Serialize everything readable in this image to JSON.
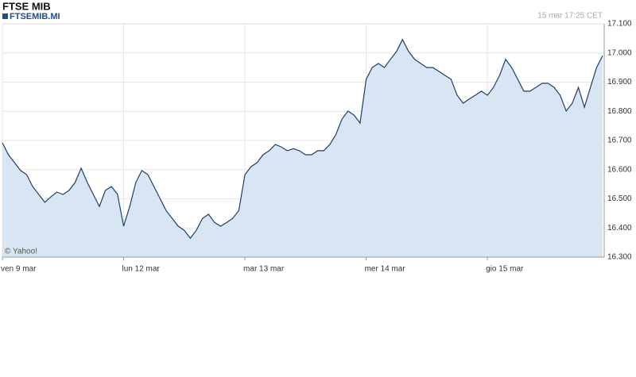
{
  "chart_data": {
    "type": "area",
    "title": "FTSE MIB",
    "subtitle": "FTSEMIB.MI",
    "timestamp": "15 mar 17:25 CET",
    "credit": "© Yahoo!",
    "categories": [
      "ven  9 mar",
      null,
      null,
      null,
      null,
      null,
      null,
      null,
      null,
      null,
      null,
      null,
      null,
      null,
      null,
      null,
      null,
      null,
      null,
      null,
      "lun 12 mar",
      null,
      null,
      null,
      null,
      null,
      null,
      null,
      null,
      null,
      null,
      null,
      null,
      null,
      null,
      null,
      null,
      null,
      null,
      null,
      "mar 13 mar",
      null,
      null,
      null,
      null,
      null,
      null,
      null,
      null,
      null,
      null,
      null,
      null,
      null,
      null,
      null,
      null,
      null,
      null,
      null,
      "mer 14 mar",
      null,
      null,
      null,
      null,
      null,
      null,
      null,
      null,
      null,
      null,
      null,
      null,
      null,
      null,
      null,
      null,
      null,
      null,
      null,
      "gio 15 mar",
      null,
      null,
      null,
      null,
      null,
      null,
      null,
      null,
      null,
      null,
      null,
      null,
      null,
      null,
      null,
      null,
      null,
      null,
      null
    ],
    "series": [
      {
        "name": "FTSEMIB.MI",
        "color": "#1b3f6e",
        "fill": "#d7e6f2",
        "values": [
          16692,
          16651,
          16624,
          16597,
          16583,
          16542,
          16515,
          16488,
          16507,
          16523,
          16515,
          16529,
          16556,
          16605,
          16556,
          16515,
          16474,
          16529,
          16542,
          16515,
          16406,
          16474,
          16556,
          16597,
          16583,
          16542,
          16501,
          16460,
          16433,
          16406,
          16392,
          16365,
          16392,
          16433,
          16447,
          16419,
          16406,
          16419,
          16433,
          16460,
          16583,
          16610,
          16624,
          16651,
          16665,
          16686,
          16678,
          16665,
          16672,
          16665,
          16651,
          16651,
          16665,
          16665,
          16686,
          16720,
          16773,
          16801,
          16787,
          16760,
          16910,
          16950,
          16964,
          16950,
          16978,
          17005,
          17046,
          17005,
          16978,
          16964,
          16950,
          16950,
          16937,
          16923,
          16910,
          16855,
          16828,
          16842,
          16855,
          16869,
          16855,
          16882,
          16923,
          16978,
          16950,
          16910,
          16869,
          16869,
          16882,
          16896,
          16896,
          16882,
          16855,
          16801,
          16828,
          16882,
          16814,
          16882,
          16950,
          16991
        ]
      }
    ],
    "ylim": [
      16300,
      17100
    ],
    "yticks": [
      {
        "value": 16300,
        "label": "16.300"
      },
      {
        "value": 16400,
        "label": "16.400"
      },
      {
        "value": 16500,
        "label": "16.500"
      },
      {
        "value": 16600,
        "label": "16.600"
      },
      {
        "value": 16700,
        "label": "16.700"
      },
      {
        "value": 16800,
        "label": "16.800"
      },
      {
        "value": 16900,
        "label": "16.900"
      },
      {
        "value": 17000,
        "label": "17.000"
      },
      {
        "value": 17100,
        "label": "17.100"
      }
    ],
    "grid": true
  }
}
